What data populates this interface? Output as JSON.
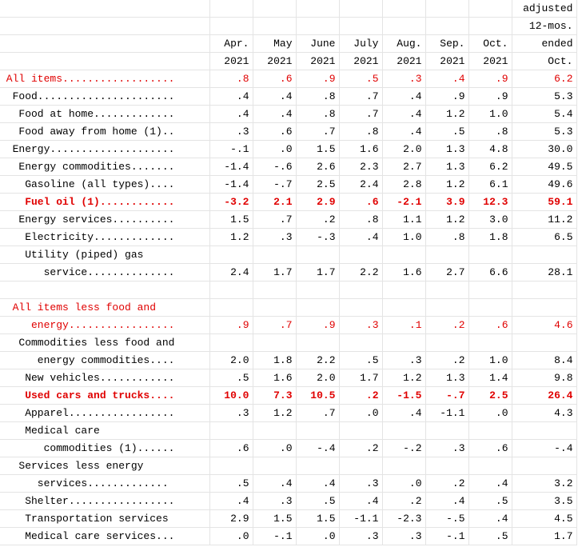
{
  "header": {
    "row1": [
      "",
      "",
      "",
      "",
      "",
      "",
      "",
      "",
      "adjusted"
    ],
    "row2": [
      "",
      "",
      "",
      "",
      "",
      "",
      "",
      "",
      "12-mos."
    ],
    "row3": [
      "",
      "Apr.",
      "May",
      "June",
      "July",
      "Aug.",
      "Sep.",
      "Oct.",
      "ended"
    ],
    "row4": [
      "",
      "2021",
      "2021",
      "2021",
      "2021",
      "2021",
      "2021",
      "2021",
      "Oct."
    ]
  },
  "rows": [
    {
      "label": " All items..................",
      "values": [
        ".8",
        ".6",
        ".9",
        ".5",
        ".3",
        ".4",
        ".9",
        "6.2"
      ],
      "style": "red"
    },
    {
      "label": "  Food......................",
      "values": [
        ".4",
        ".4",
        ".8",
        ".7",
        ".4",
        ".9",
        ".9",
        "5.3"
      ],
      "style": ""
    },
    {
      "label": "   Food at home.............",
      "values": [
        ".4",
        ".4",
        ".8",
        ".7",
        ".4",
        "1.2",
        "1.0",
        "5.4"
      ],
      "style": ""
    },
    {
      "label": "   Food away from home (1)..",
      "values": [
        ".3",
        ".6",
        ".7",
        ".8",
        ".4",
        ".5",
        ".8",
        "5.3"
      ],
      "style": ""
    },
    {
      "label": "  Energy....................",
      "values": [
        "-.1",
        ".0",
        "1.5",
        "1.6",
        "2.0",
        "1.3",
        "4.8",
        "30.0"
      ],
      "style": ""
    },
    {
      "label": "   Energy commodities.......",
      "values": [
        "-1.4",
        "-.6",
        "2.6",
        "2.3",
        "2.7",
        "1.3",
        "6.2",
        "49.5"
      ],
      "style": ""
    },
    {
      "label": "    Gasoline (all types)....",
      "values": [
        "-1.4",
        "-.7",
        "2.5",
        "2.4",
        "2.8",
        "1.2",
        "6.1",
        "49.6"
      ],
      "style": ""
    },
    {
      "label": "    Fuel oil (1)............",
      "values": [
        "-3.2",
        "2.1",
        "2.9",
        ".6",
        "-2.1",
        "3.9",
        "12.3",
        "59.1"
      ],
      "style": "red bold"
    },
    {
      "label": "   Energy services..........",
      "values": [
        "1.5",
        ".7",
        ".2",
        ".8",
        "1.1",
        "1.2",
        "3.0",
        "11.2"
      ],
      "style": ""
    },
    {
      "label": "    Electricity.............",
      "values": [
        "1.2",
        ".3",
        "-.3",
        ".4",
        "1.0",
        ".8",
        "1.8",
        "6.5"
      ],
      "style": ""
    },
    {
      "label": "    Utility (piped) gas",
      "values": [
        "",
        "",
        "",
        "",
        "",
        "",
        "",
        ""
      ],
      "style": ""
    },
    {
      "label": "       service..............",
      "values": [
        "2.4",
        "1.7",
        "1.7",
        "2.2",
        "1.6",
        "2.7",
        "6.6",
        "28.1"
      ],
      "style": ""
    },
    {
      "label": "",
      "values": [
        "",
        "",
        "",
        "",
        "",
        "",
        "",
        ""
      ],
      "style": "blank"
    },
    {
      "label": "  All items less food and",
      "values": [
        "",
        "",
        "",
        "",
        "",
        "",
        "",
        ""
      ],
      "style": "red"
    },
    {
      "label": "     energy.................",
      "values": [
        ".9",
        ".7",
        ".9",
        ".3",
        ".1",
        ".2",
        ".6",
        "4.6"
      ],
      "style": "red"
    },
    {
      "label": "   Commodities less food and",
      "values": [
        "",
        "",
        "",
        "",
        "",
        "",
        "",
        ""
      ],
      "style": ""
    },
    {
      "label": "      energy commodities....",
      "values": [
        "2.0",
        "1.8",
        "2.2",
        ".5",
        ".3",
        ".2",
        "1.0",
        "8.4"
      ],
      "style": ""
    },
    {
      "label": "    New vehicles............",
      "values": [
        ".5",
        "1.6",
        "2.0",
        "1.7",
        "1.2",
        "1.3",
        "1.4",
        "9.8"
      ],
      "style": ""
    },
    {
      "label": "    Used cars and trucks....",
      "values": [
        "10.0",
        "7.3",
        "10.5",
        ".2",
        "-1.5",
        "-.7",
        "2.5",
        "26.4"
      ],
      "style": "red bold"
    },
    {
      "label": "    Apparel.................",
      "values": [
        ".3",
        "1.2",
        ".7",
        ".0",
        ".4",
        "-1.1",
        ".0",
        "4.3"
      ],
      "style": ""
    },
    {
      "label": "    Medical care",
      "values": [
        "",
        "",
        "",
        "",
        "",
        "",
        "",
        ""
      ],
      "style": ""
    },
    {
      "label": "       commodities (1)......",
      "values": [
        ".6",
        ".0",
        "-.4",
        ".2",
        "-.2",
        ".3",
        ".6",
        "-.4"
      ],
      "style": ""
    },
    {
      "label": "   Services less energy",
      "values": [
        "",
        "",
        "",
        "",
        "",
        "",
        "",
        ""
      ],
      "style": ""
    },
    {
      "label": "      services.............",
      "values": [
        ".5",
        ".4",
        ".4",
        ".3",
        ".0",
        ".2",
        ".4",
        "3.2"
      ],
      "style": ""
    },
    {
      "label": "    Shelter.................",
      "values": [
        ".4",
        ".3",
        ".5",
        ".4",
        ".2",
        ".4",
        ".5",
        "3.5"
      ],
      "style": ""
    },
    {
      "label": "    Transportation services",
      "values": [
        "2.9",
        "1.5",
        "1.5",
        "-1.1",
        "-2.3",
        "-.5",
        ".4",
        "4.5"
      ],
      "style": ""
    },
    {
      "label": "    Medical care services...",
      "values": [
        ".0",
        "-.1",
        ".0",
        ".3",
        ".3",
        "-.1",
        ".5",
        "1.7"
      ],
      "style": ""
    }
  ]
}
